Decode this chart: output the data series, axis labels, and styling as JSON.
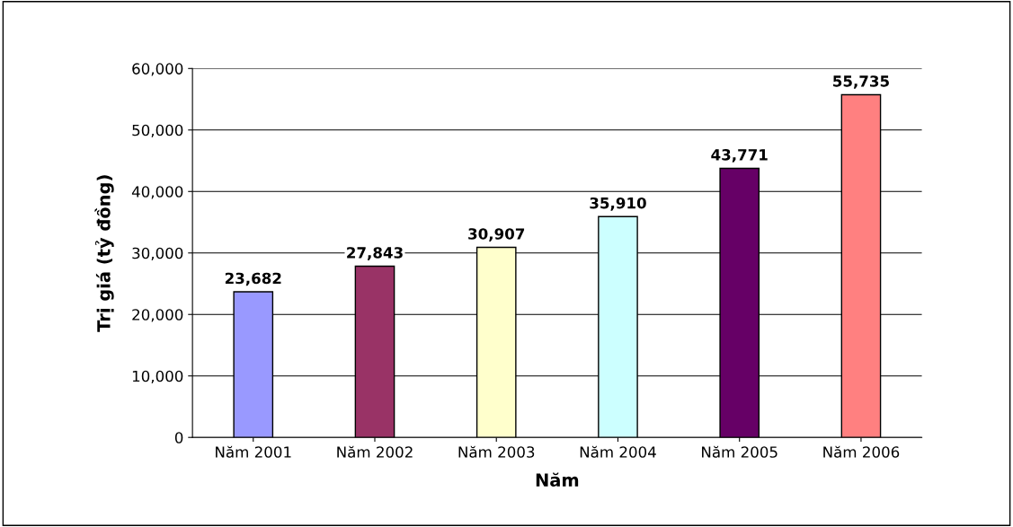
{
  "chart_data": {
    "type": "bar",
    "xlabel": "Năm",
    "ylabel": "Trị giá (tỷ đồng)",
    "categories": [
      "Năm 2001",
      "Năm 2002",
      "Năm 2003",
      "Năm 2004",
      "Năm 2005",
      "Năm 2006"
    ],
    "values": [
      23682,
      27843,
      30907,
      35910,
      43771,
      55735
    ],
    "colors": [
      "#9999ff",
      "#993366",
      "#ffffcc",
      "#ccffff",
      "#660066",
      "#ff8080"
    ],
    "value_labels": [
      "23,682",
      "27,843",
      "30,907",
      "35,910",
      "43,771",
      "55,735"
    ],
    "ylim": [
      0,
      60000
    ],
    "yticks": [
      {
        "value": 0,
        "label": "0"
      },
      {
        "value": 10000,
        "label": "10,000"
      },
      {
        "value": 20000,
        "label": "20,000"
      },
      {
        "value": 30000,
        "label": "30,000"
      },
      {
        "value": 40000,
        "label": "40,000"
      },
      {
        "value": 50000,
        "label": "50,000"
      },
      {
        "value": 60000,
        "label": "60,000"
      }
    ],
    "grid": "y",
    "legend": false
  }
}
